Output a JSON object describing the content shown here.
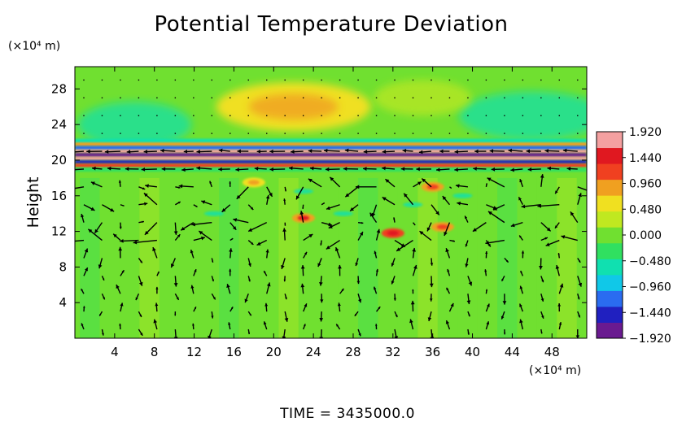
{
  "chart_data": {
    "type": "heatmap",
    "title": "Potential Temperature Deviation",
    "ylabel": "Height",
    "xunit": "(×10⁴ m)",
    "yunit": "(×10⁴ m)",
    "xlim": [
      0,
      51.5
    ],
    "ylim": [
      0,
      30.5
    ],
    "x_ticks": [
      4,
      8,
      12,
      16,
      20,
      24,
      28,
      32,
      36,
      40,
      44,
      48
    ],
    "x_tick_labels": [
      "4",
      "8",
      "12",
      "16",
      "20",
      "24",
      "28",
      "32",
      "36",
      "40",
      "44",
      "48"
    ],
    "y_ticks": [
      4,
      8,
      12,
      16,
      20,
      24,
      28
    ],
    "y_tick_labels": [
      "4",
      "8",
      "12",
      "16",
      "20",
      "24",
      "28"
    ],
    "colorbar": {
      "min": -1.92,
      "max": 1.92,
      "ticks": [
        1.92,
        1.44,
        0.96,
        0.48,
        0.0,
        -0.48,
        -0.96,
        -1.44,
        -1.92
      ],
      "tick_labels": [
        "1.920",
        "1.440",
        "0.960",
        "0.480",
        "0.000",
        "−0.480",
        "−0.960",
        "−1.440",
        "−1.920"
      ],
      "colors": [
        "#6a1a90",
        "#2020c0",
        "#2a6cf0",
        "#10c8e8",
        "#10e0b0",
        "#30e060",
        "#70e030",
        "#c0e820",
        "#f0e020",
        "#f0a020",
        "#f04020",
        "#e01820",
        "#f4a0a0"
      ]
    },
    "features": {
      "background_value": 0.0,
      "upper_warm_region": {
        "x": 22,
        "y": 26,
        "value": 0.55
      },
      "shear_layer_band": {
        "y_min": 19.3,
        "y_max": 22.5
      },
      "warm_patches": [
        {
          "x": 23,
          "y": 13.5,
          "value": 1.4
        },
        {
          "x": 32,
          "y": 11.8,
          "value": 1.5
        },
        {
          "x": 37,
          "y": 12.5,
          "value": 1.3
        },
        {
          "x": 36,
          "y": 17,
          "value": 1.1
        },
        {
          "x": 18,
          "y": 17.5,
          "value": 1.0
        }
      ]
    },
    "annotation": "TIME = 3435000.0"
  }
}
